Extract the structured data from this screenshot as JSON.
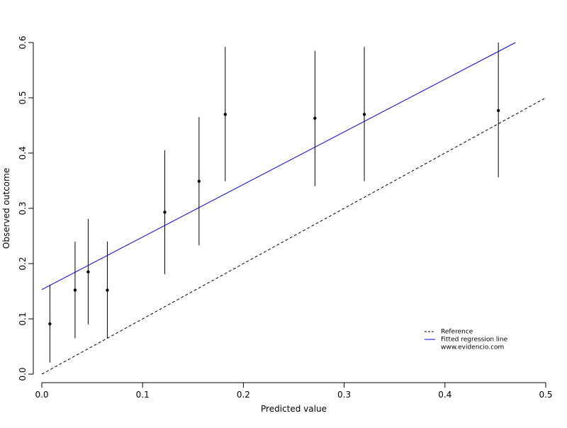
{
  "chart_data": {
    "type": "scatter",
    "xlabel": "Predicted value",
    "ylabel": "Observed outcome",
    "xlim": [
      0,
      0.5
    ],
    "ylim": [
      0,
      0.6
    ],
    "x_ticks": [
      {
        "value": 0.0,
        "label": "0.0"
      },
      {
        "value": 0.1,
        "label": "0.1"
      },
      {
        "value": 0.2,
        "label": "0.2"
      },
      {
        "value": 0.3,
        "label": "0.3"
      },
      {
        "value": 0.4,
        "label": "0.4"
      },
      {
        "value": 0.5,
        "label": "0.5"
      }
    ],
    "y_ticks": [
      {
        "value": 0.0,
        "label": "0.0"
      },
      {
        "value": 0.1,
        "label": "0.1"
      },
      {
        "value": 0.2,
        "label": "0.2"
      },
      {
        "value": 0.3,
        "label": "0.3"
      },
      {
        "value": 0.4,
        "label": "0.4"
      },
      {
        "value": 0.5,
        "label": "0.5"
      },
      {
        "value": 0.6,
        "label": "0.6"
      }
    ],
    "grid": false,
    "legend_position": "bottom-right",
    "points": [
      {
        "x": 0.008,
        "y": 0.091,
        "lower": 0.021,
        "upper": 0.162
      },
      {
        "x": 0.033,
        "y": 0.152,
        "lower": 0.065,
        "upper": 0.24
      },
      {
        "x": 0.046,
        "y": 0.185,
        "lower": 0.09,
        "upper": 0.281
      },
      {
        "x": 0.065,
        "y": 0.152,
        "lower": 0.065,
        "upper": 0.24
      },
      {
        "x": 0.122,
        "y": 0.293,
        "lower": 0.181,
        "upper": 0.405
      },
      {
        "x": 0.156,
        "y": 0.349,
        "lower": 0.233,
        "upper": 0.465
      },
      {
        "x": 0.182,
        "y": 0.47,
        "lower": 0.349,
        "upper": 0.592
      },
      {
        "x": 0.271,
        "y": 0.463,
        "lower": 0.34,
        "upper": 0.585
      },
      {
        "x": 0.32,
        "y": 0.47,
        "lower": 0.349,
        "upper": 0.592
      },
      {
        "x": 0.453,
        "y": 0.477,
        "lower": 0.356,
        "upper": 0.6
      }
    ],
    "reference_line": {
      "x": [
        0,
        0.5
      ],
      "y": [
        0,
        0.5
      ],
      "color": "#000000",
      "dash": "dashed"
    },
    "fitted_line": {
      "x": [
        0,
        0.47
      ],
      "y": [
        0.153,
        0.6
      ],
      "color": "#0000ff"
    },
    "legend": [
      {
        "label": "Reference",
        "kind": "reference"
      },
      {
        "label": "Fitted regression line",
        "kind": "fitted"
      },
      {
        "label": "www.evidencio.com",
        "kind": "text"
      }
    ]
  }
}
